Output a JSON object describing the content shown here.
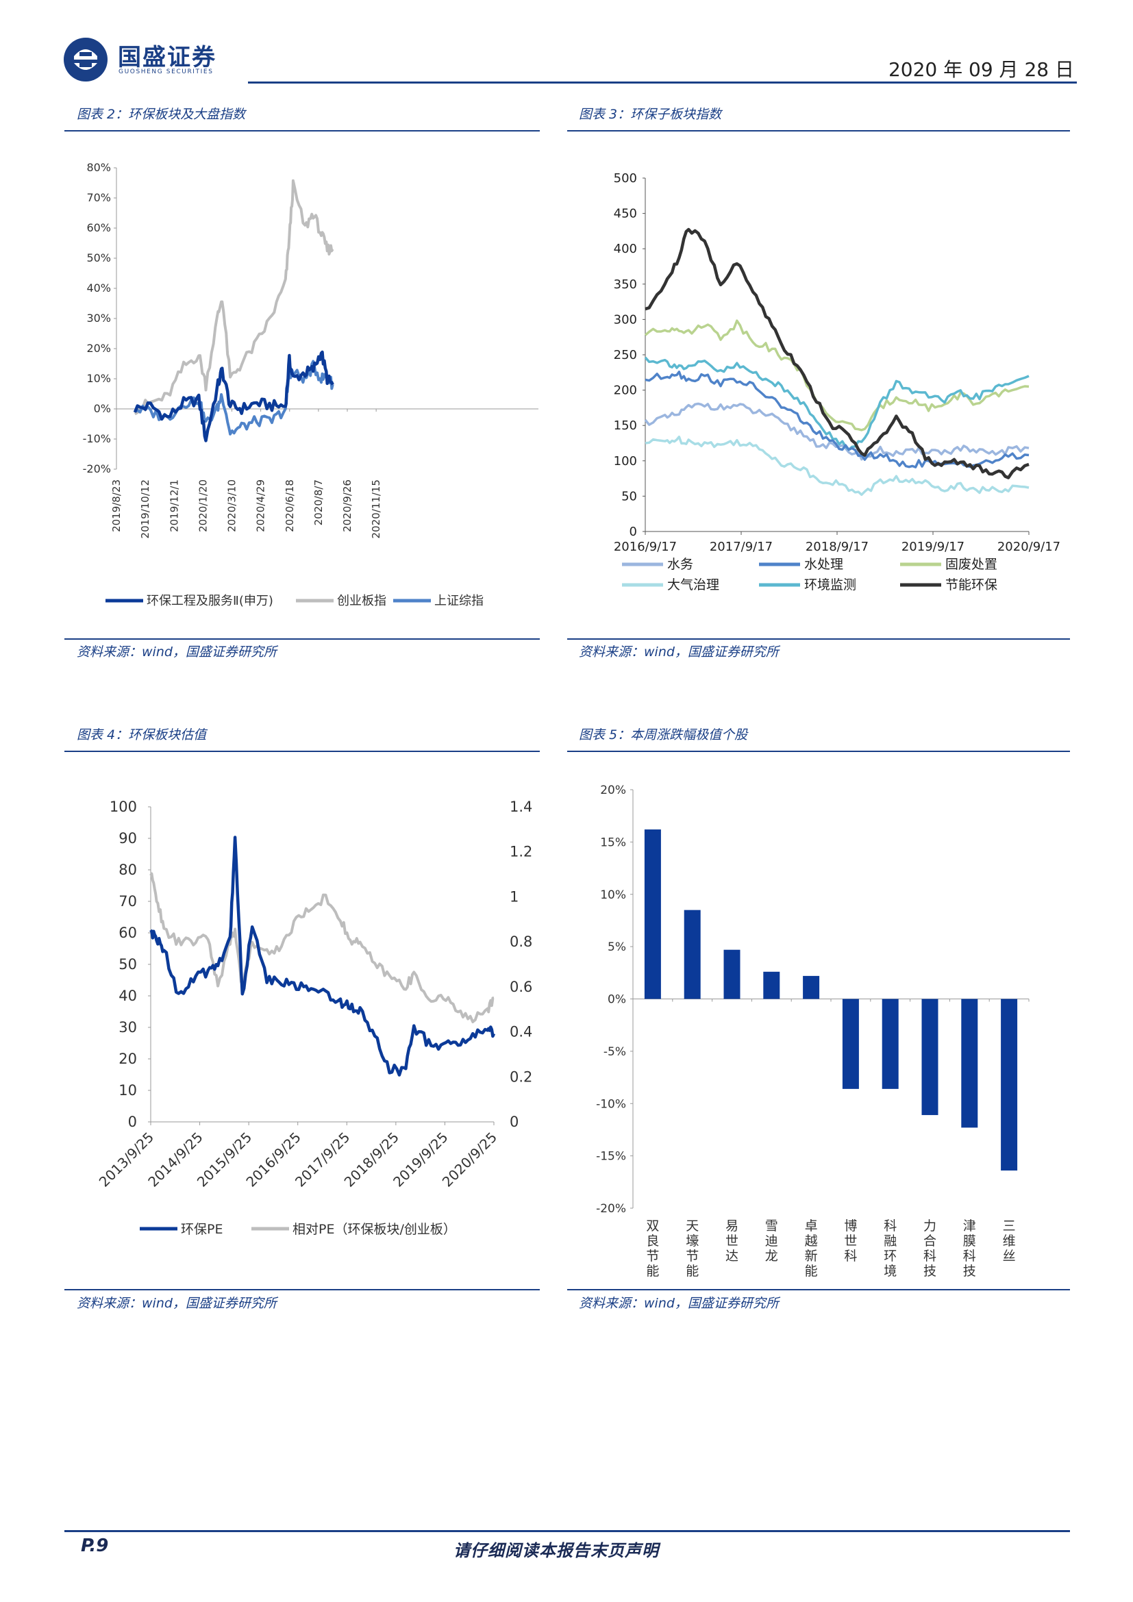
{
  "header": {
    "logo_name": "国盛证券",
    "logo_sub": "GUOSHENG SECURITIES",
    "date": "2020 年 09 月 28 日"
  },
  "colors": {
    "brand": "#1a3f86",
    "dark_blue": "#0b3a98",
    "mid_blue": "#4f83c9",
    "gray": "#bdbdbd",
    "black": "#333333",
    "green": "#b9d38f",
    "cyan": "#5bb8d0",
    "light_cyan": "#a8dde6",
    "light_blue": "#9bb6df"
  },
  "fig2": {
    "title": "图表 2：环保板块及大盘指数",
    "source": "资料来源：wind，国盛证券研究所",
    "legend": [
      "环保工程及服务Ⅱ(申万)",
      "创业板指",
      "上证综指"
    ],
    "chart_data": {
      "type": "line",
      "x_ticks": [
        "2019/8/23",
        "2019/10/12",
        "2019/12/1",
        "2020/1/20",
        "2020/3/10",
        "2020/4/29",
        "2020/6/18",
        "2020/8/7",
        "2020/9/26",
        "2020/11/15"
      ],
      "y_ticks": [
        "80%",
        "70%",
        "60%",
        "50%",
        "40%",
        "30%",
        "20%",
        "10%",
        "0%",
        "-10%",
        "-20%"
      ],
      "ylim": [
        -20,
        80
      ],
      "x_dates": [
        "2019/9/26",
        "2019/10/25",
        "2019/11/25",
        "2019/12/25",
        "2020/1/22",
        "2020/2/4",
        "2020/2/25",
        "2020/3/5",
        "2020/3/20",
        "2020/4/10",
        "2020/5/8",
        "2020/6/5",
        "2020/6/30",
        "2020/7/7",
        "2020/7/14",
        "2020/8/5",
        "2020/8/20",
        "2020/9/4",
        "2020/9/15",
        "2020/9/25"
      ],
      "series": [
        {
          "name": "环保工程及服务Ⅱ(申万)",
          "values": [
            0,
            1,
            -3,
            2,
            3,
            -10,
            7,
            13,
            1,
            0,
            2,
            1,
            1,
            16,
            10,
            12,
            13,
            19,
            10,
            8
          ]
        },
        {
          "name": "创业板指",
          "values": [
            0,
            2,
            4,
            14,
            18,
            8,
            30,
            37,
            10,
            15,
            22,
            31,
            42,
            57,
            74,
            60,
            65,
            58,
            53,
            53
          ]
        },
        {
          "name": "上证综指",
          "values": [
            0,
            -1,
            -3,
            2,
            3,
            -5,
            0,
            5,
            -8,
            -6,
            -4,
            -4,
            0,
            12,
            12,
            10,
            14,
            10,
            11,
            8
          ]
        }
      ]
    }
  },
  "fig3": {
    "title": "图表 3：环保子板块指数",
    "source": "资料来源：wind，国盛证券研究所",
    "legend": [
      "水务",
      "水处理",
      "固废处置",
      "大气治理",
      "环境监测",
      "节能环保"
    ],
    "chart_data": {
      "type": "line",
      "x_ticks": [
        "2016/9/17",
        "2017/9/17",
        "2018/9/17",
        "2019/9/17",
        "2020/9/17"
      ],
      "y_ticks": [
        "500",
        "450",
        "400",
        "350",
        "300",
        "250",
        "200",
        "150",
        "100",
        "50",
        "0"
      ],
      "ylim": [
        0,
        500
      ],
      "x_dates": [
        "2016/9/17",
        "2016/12/1",
        "2017/1/15",
        "2017/3/1",
        "2017/5/1",
        "2017/7/1",
        "2017/9/1",
        "2017/11/1",
        "2018/1/1",
        "2018/3/1",
        "2018/5/1",
        "2018/7/1",
        "2018/9/1",
        "2018/11/1",
        "2019/1/1",
        "2019/3/1",
        "2019/5/1",
        "2019/7/1",
        "2019/9/1",
        "2019/11/1",
        "2020/1/1",
        "2020/3/1",
        "2020/5/1",
        "2020/7/1",
        "2020/9/17"
      ],
      "series": [
        {
          "name": "水务",
          "values": [
            155,
            160,
            165,
            175,
            180,
            175,
            178,
            170,
            165,
            150,
            140,
            125,
            120,
            115,
            105,
            115,
            110,
            112,
            115,
            112,
            118,
            112,
            110,
            115,
            118
          ]
        },
        {
          "name": "水处理",
          "values": [
            215,
            220,
            225,
            215,
            220,
            210,
            215,
            205,
            190,
            175,
            160,
            140,
            125,
            115,
            105,
            110,
            95,
            95,
            98,
            92,
            98,
            95,
            100,
            105,
            108
          ]
        },
        {
          "name": "固废处置",
          "values": [
            280,
            285,
            290,
            280,
            295,
            275,
            295,
            270,
            260,
            245,
            230,
            180,
            160,
            150,
            145,
            175,
            190,
            185,
            175,
            180,
            195,
            180,
            190,
            200,
            205
          ]
        },
        {
          "name": "大气治理",
          "values": [
            125,
            128,
            130,
            128,
            125,
            122,
            128,
            120,
            110,
            95,
            90,
            75,
            70,
            60,
            55,
            70,
            75,
            70,
            68,
            62,
            65,
            60,
            58,
            60,
            62
          ]
        },
        {
          "name": "环境监测",
          "values": [
            245,
            240,
            235,
            230,
            240,
            225,
            235,
            225,
            215,
            200,
            185,
            160,
            130,
            120,
            130,
            180,
            210,
            200,
            190,
            185,
            195,
            190,
            200,
            210,
            220
          ]
        },
        {
          "name": "节能环保",
          "values": [
            310,
            350,
            380,
            430,
            410,
            350,
            380,
            340,
            300,
            260,
            230,
            185,
            150,
            135,
            110,
            130,
            160,
            135,
            100,
            95,
            100,
            90,
            85,
            80,
            95
          ]
        }
      ]
    }
  },
  "fig4": {
    "title": "图表 4：环保板块估值",
    "source": "资料来源：wind，国盛证券研究所",
    "legend": [
      "环保PE",
      "相对PE（环保板块/创业板）"
    ],
    "chart_data": {
      "type": "line",
      "x_ticks": [
        "2013/9/25",
        "2014/9/25",
        "2015/9/25",
        "2016/9/25",
        "2017/9/25",
        "2018/9/25",
        "2019/9/25",
        "2020/9/25"
      ],
      "y_ticks_left": [
        "100",
        "90",
        "80",
        "70",
        "60",
        "50",
        "40",
        "30",
        "20",
        "10",
        "0"
      ],
      "y_ticks_right": [
        "1.4",
        "1.2",
        "1",
        "0.8",
        "0.6",
        "0.4",
        "0.2",
        "0"
      ],
      "ylim_left": [
        0,
        100
      ],
      "ylim_right": [
        0,
        1.4
      ],
      "x_years": [
        2013.73,
        2013.85,
        2014.0,
        2014.3,
        2014.6,
        2014.9,
        2015.1,
        2015.35,
        2015.45,
        2015.6,
        2015.8,
        2016.1,
        2016.4,
        2016.7,
        2017.0,
        2017.3,
        2017.6,
        2017.8,
        2018.0,
        2018.3,
        2018.6,
        2018.9,
        2019.1,
        2019.4,
        2019.7,
        2020.0,
        2020.3,
        2020.6,
        2020.73
      ],
      "series": [
        {
          "name": "环保PE",
          "values": [
            60,
            58,
            55,
            40,
            45,
            48,
            50,
            58,
            90,
            40,
            62,
            45,
            45,
            43,
            42,
            41,
            38,
            37,
            35,
            28,
            17,
            16,
            30,
            25,
            24,
            25,
            27,
            30,
            28
          ]
        },
        {
          "name": "相对PE（环保板块/创业板）",
          "values": [
            1.1,
            1.0,
            0.85,
            0.8,
            0.8,
            0.82,
            0.6,
            0.8,
            0.85,
            0.6,
            0.8,
            0.75,
            0.78,
            0.9,
            0.95,
            1.0,
            0.9,
            0.8,
            0.8,
            0.7,
            0.65,
            0.6,
            0.65,
            0.55,
            0.55,
            0.5,
            0.45,
            0.5,
            0.55
          ]
        }
      ]
    }
  },
  "fig5": {
    "title": "图表 5：本周涨跌幅极值个股",
    "source": "资料来源：wind，国盛证券研究所",
    "chart_data": {
      "type": "bar",
      "categories": [
        "双良节能",
        "天壕节能",
        "易世达",
        "雪迪龙",
        "卓越新能",
        "博世科",
        "科融环境",
        "力合科技",
        "津膜科技",
        "三维丝"
      ],
      "values": [
        16.2,
        8.5,
        4.7,
        2.6,
        2.2,
        -8.6,
        -8.6,
        -11.1,
        -12.3,
        -16.4
      ],
      "y_ticks": [
        "20%",
        "15%",
        "10%",
        "5%",
        "0%",
        "-5%",
        "-10%",
        "-15%",
        "-20%"
      ],
      "ylim": [
        -20,
        20
      ]
    }
  },
  "footer": {
    "page": "P.9",
    "note": "请仔细阅读本报告末页声明"
  }
}
